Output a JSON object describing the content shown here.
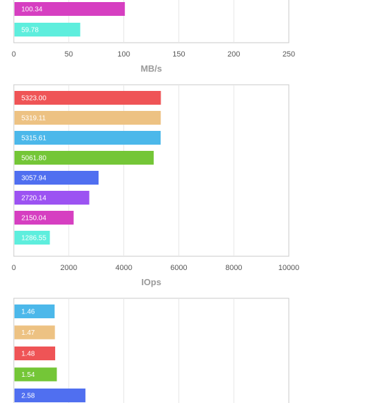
{
  "chart_data": [
    {
      "type": "bar",
      "orientation": "horizontal",
      "xlabel": "MB/s",
      "xlim": [
        0,
        250
      ],
      "xticks": [
        "0",
        "50",
        "100",
        "150",
        "200",
        "250"
      ],
      "grid": true,
      "bars": [
        {
          "value": 100.34,
          "label": "100.34",
          "color": "#d63fc1"
        },
        {
          "value": 59.78,
          "label": "59.78",
          "color": "#5eeedd"
        }
      ]
    },
    {
      "type": "bar",
      "orientation": "horizontal",
      "xlabel": "IOps",
      "xlim": [
        0,
        10000
      ],
      "xticks": [
        "0",
        "2000",
        "4000",
        "6000",
        "8000",
        "10000"
      ],
      "grid": true,
      "bars": [
        {
          "value": 5323.0,
          "label": "5323.00",
          "color": "#ef5456"
        },
        {
          "value": 5319.11,
          "label": "5319.11",
          "color": "#edc283"
        },
        {
          "value": 5315.61,
          "label": "5315.61",
          "color": "#4cb8ea"
        },
        {
          "value": 5061.8,
          "label": "5061.80",
          "color": "#74c637"
        },
        {
          "value": 3057.94,
          "label": "3057.94",
          "color": "#506ff0"
        },
        {
          "value": 2720.14,
          "label": "2720.14",
          "color": "#9c53f2"
        },
        {
          "value": 2150.04,
          "label": "2150.04",
          "color": "#d63fc1"
        },
        {
          "value": 1286.55,
          "label": "1286.55",
          "color": "#5eeedd"
        }
      ]
    },
    {
      "type": "bar",
      "orientation": "horizontal",
      "xlim": [
        0,
        10
      ],
      "grid": true,
      "bars": [
        {
          "value": 1.46,
          "label": "1.46",
          "color": "#4cb8ea"
        },
        {
          "value": 1.47,
          "label": "1.47",
          "color": "#edc283"
        },
        {
          "value": 1.48,
          "label": "1.48",
          "color": "#ef5456"
        },
        {
          "value": 1.54,
          "label": "1.54",
          "color": "#74c637"
        },
        {
          "value": 2.58,
          "label": "2.58",
          "color": "#506ff0"
        }
      ]
    }
  ]
}
